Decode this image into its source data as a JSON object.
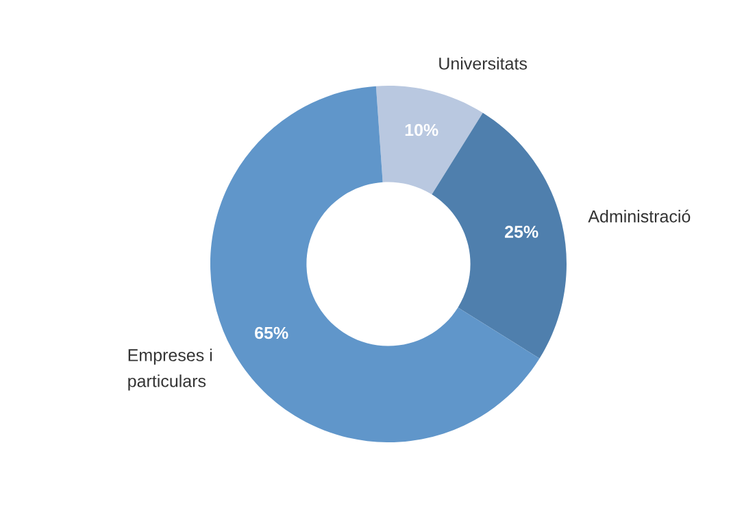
{
  "chart_data": {
    "type": "donut",
    "categories": [
      "Universitats",
      "Administració",
      "Empreses i\nparticulars"
    ],
    "values": [
      10,
      25,
      65
    ],
    "value_labels": [
      "10%",
      "25%",
      "65%"
    ],
    "colors": [
      "#b9c8e0",
      "#4f7fad",
      "#6096ca"
    ],
    "legend": false
  }
}
